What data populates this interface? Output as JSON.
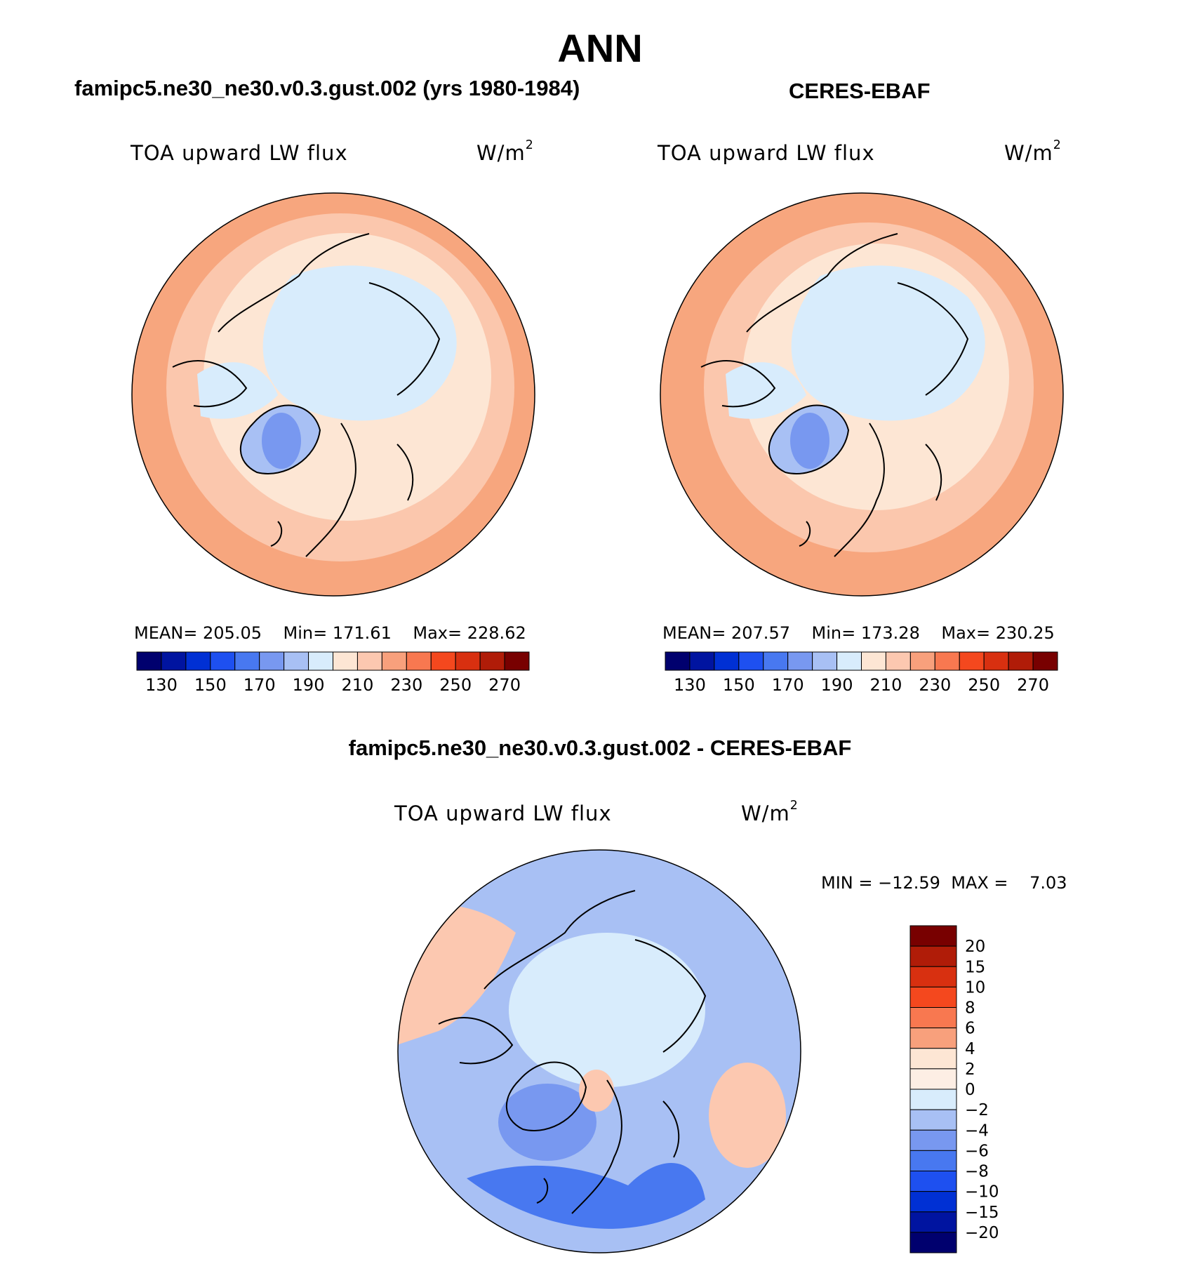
{
  "title": "ANN",
  "panels": [
    {
      "id": "model",
      "header": "famipc5.ne30_ne30.v0.3.gust.002 (yrs 1980-1984)",
      "variable": "TOA upward LW flux",
      "units_base": "W/m",
      "units_exp": "2",
      "stats": {
        "mean_label": "MEAN=",
        "mean": "205.05",
        "min_label": "Min=",
        "min": "171.61",
        "max_label": "Max=",
        "max": "228.62"
      }
    },
    {
      "id": "obs",
      "header": "CERES-EBAF",
      "variable": "TOA upward LW flux",
      "units_base": "W/m",
      "units_exp": "2",
      "stats": {
        "mean_label": "MEAN=",
        "mean": "207.57",
        "min_label": "Min=",
        "min": "173.28",
        "max_label": "Max=",
        "max": "230.25"
      }
    }
  ],
  "diff_panel": {
    "header": "famipc5.ne30_ne30.v0.3.gust.002 - CERES-EBAF",
    "variable": "TOA upward LW flux",
    "units_base": "W/m",
    "units_exp": "2",
    "minmax": {
      "min_label": "MIN =",
      "min": "−12.59",
      "max_label": "MAX =",
      "max": "7.03"
    }
  },
  "chart_data": [
    {
      "type": "heatmap",
      "projection": "north-polar-stereographic",
      "title": "famipc5.ne30_ne30.v0.3.gust.002 (yrs 1980-1984)",
      "variable": "TOA upward LW flux",
      "units": "W/m2",
      "mean": 205.05,
      "min": 171.61,
      "max": 228.62,
      "colorbar": {
        "orientation": "horizontal",
        "tick_labels": [
          "130",
          "150",
          "170",
          "190",
          "210",
          "230",
          "250",
          "270"
        ],
        "colors": [
          "#00006e",
          "#0014a0",
          "#0030d4",
          "#1e50f0",
          "#4878f0",
          "#7898f0",
          "#a8c0f4",
          "#d8ecfc",
          "#fde6d4",
          "#fcc8b0",
          "#f8a07c",
          "#f87850",
          "#f4481e",
          "#d83010",
          "#b01c08",
          "#780000"
        ]
      }
    },
    {
      "type": "heatmap",
      "projection": "north-polar-stereographic",
      "title": "CERES-EBAF",
      "variable": "TOA upward LW flux",
      "units": "W/m2",
      "mean": 207.57,
      "min": 173.28,
      "max": 230.25,
      "colorbar": {
        "orientation": "horizontal",
        "tick_labels": [
          "130",
          "150",
          "170",
          "190",
          "210",
          "230",
          "250",
          "270"
        ],
        "colors": [
          "#00006e",
          "#0014a0",
          "#0030d4",
          "#1e50f0",
          "#4878f0",
          "#7898f0",
          "#a8c0f4",
          "#d8ecfc",
          "#fde6d4",
          "#fcc8b0",
          "#f8a07c",
          "#f87850",
          "#f4481e",
          "#d83010",
          "#b01c08",
          "#780000"
        ]
      }
    },
    {
      "type": "heatmap",
      "projection": "north-polar-stereographic",
      "title": "famipc5.ne30_ne30.v0.3.gust.002 - CERES-EBAF",
      "variable": "TOA upward LW flux",
      "units": "W/m2",
      "min": -12.59,
      "max": 7.03,
      "colorbar": {
        "orientation": "vertical",
        "tick_labels": [
          "20",
          "15",
          "10",
          "8",
          "6",
          "4",
          "2",
          "0",
          "−2",
          "−4",
          "−6",
          "−8",
          "−10",
          "−15",
          "−20"
        ],
        "colors": [
          "#780000",
          "#b01c08",
          "#d83010",
          "#f4481e",
          "#f87850",
          "#f8a07c",
          "#fde6d4",
          "#fdeee4",
          "#d8ecfc",
          "#a8c0f4",
          "#7898f0",
          "#4878f0",
          "#1e50f0",
          "#0030d4",
          "#0014a0",
          "#00006e"
        ]
      }
    }
  ],
  "map_colors": {
    "warm_outer": "#f7a67e",
    "warm_mid": "#fbc7ad",
    "warm_light": "#fde6d4",
    "ice": "#d8ecfc",
    "ice_dark": "#a8c0f4",
    "greenland": "#7898f0",
    "diff_base": "#a8c0f4",
    "diff_mid": "#d8ecfc",
    "diff_blue": "#7898f0",
    "diff_deep": "#4878f0",
    "diff_warm": "#fcc8b0"
  }
}
